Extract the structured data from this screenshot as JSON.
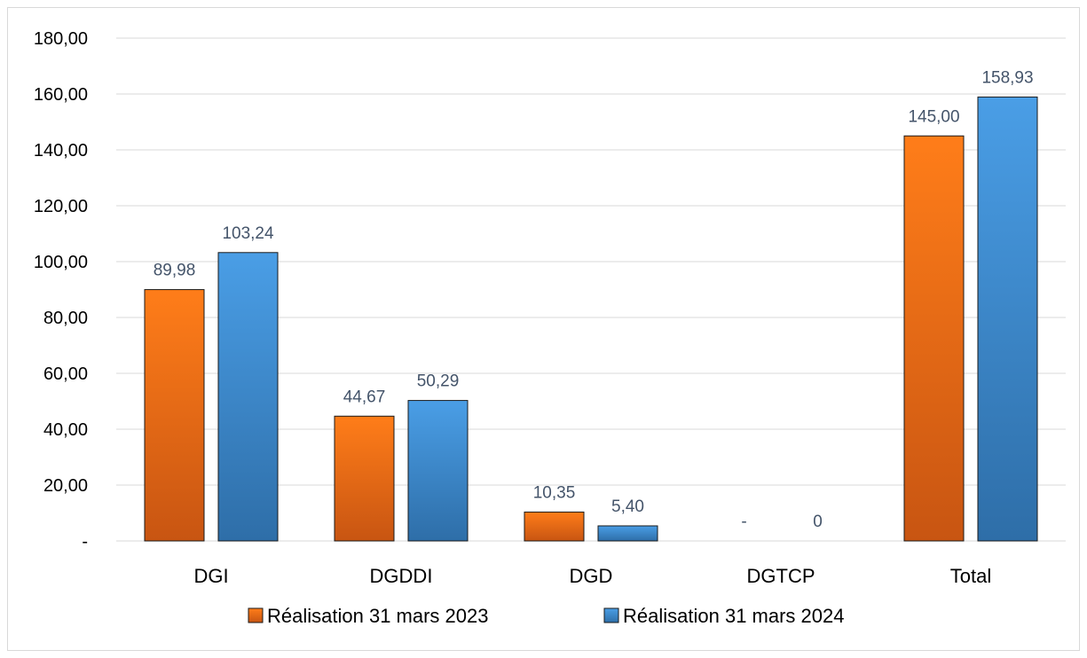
{
  "chart_data": {
    "type": "bar",
    "categories": [
      "DGI",
      "DGDDI",
      "DGD",
      "DGTCP",
      "Total"
    ],
    "series": [
      {
        "name": "Réalisation 31 mars 2023",
        "values": [
          89.98,
          44.67,
          10.35,
          0,
          145.0
        ],
        "labels": [
          "89,98",
          "44,67",
          "10,35",
          "-",
          "145,00"
        ],
        "color": "#f07c1a"
      },
      {
        "name": "Réalisation 31 mars 2024",
        "values": [
          103.24,
          50.29,
          5.4,
          0,
          158.93
        ],
        "labels": [
          "103,24",
          "50,29",
          "5,40",
          "0",
          "158,93"
        ],
        "color": "#3d8fd9"
      }
    ],
    "ylim": [
      0,
      180
    ],
    "yticks": [
      {
        "value": 0,
        "label": "-"
      },
      {
        "value": 20,
        "label": "20,00"
      },
      {
        "value": 40,
        "label": "40,00"
      },
      {
        "value": 60,
        "label": "60,00"
      },
      {
        "value": 80,
        "label": "80,00"
      },
      {
        "value": 100,
        "label": "100,00"
      },
      {
        "value": 120,
        "label": "120,00"
      },
      {
        "value": 140,
        "label": "140,00"
      },
      {
        "value": 160,
        "label": "160,00"
      },
      {
        "value": 180,
        "label": "180,00"
      }
    ],
    "grid": true,
    "legend_position": "bottom"
  }
}
